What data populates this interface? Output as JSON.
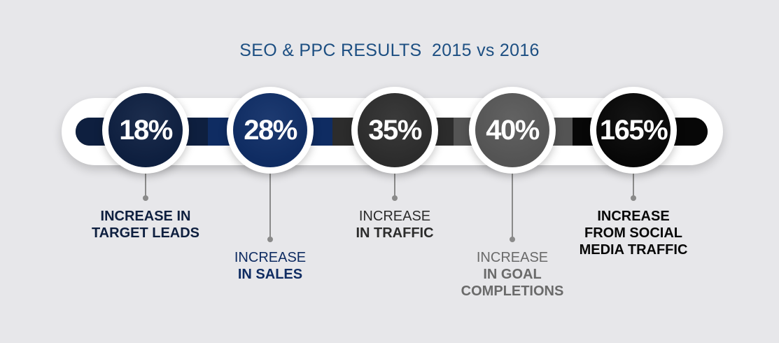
{
  "title": "SEO & PPC RESULTS  2015 vs 2016",
  "colors": {
    "background": "#e7e7ea",
    "title": "#1d4f82",
    "stage1": "#0e1f3f",
    "stage2": "#0f2c62",
    "stage3": "#2c2c2c",
    "stage4": "#545454",
    "stage5": "#070707"
  },
  "stats": [
    {
      "value": "18%",
      "label_line1": "INCREASE IN",
      "label_line2": "TARGET LEADS",
      "label_line3": ""
    },
    {
      "value": "28%",
      "label_line1": "INCREASE",
      "label_line2": "IN SALES",
      "label_line3": ""
    },
    {
      "value": "35%",
      "label_line1": "INCREASE",
      "label_line2": "IN TRAFFIC",
      "label_line3": ""
    },
    {
      "value": "40%",
      "label_line1": "INCREASE",
      "label_line2": "IN GOAL",
      "label_line3": "COMPLETIONS"
    },
    {
      "value": "165%",
      "label_line1": "INCREASE",
      "label_line2": "FROM SOCIAL",
      "label_line3": "MEDIA TRAFFIC"
    }
  ],
  "chart_data": {
    "type": "bar",
    "title": "SEO & PPC RESULTS  2015 vs 2016",
    "categories": [
      "INCREASE IN TARGET LEADS",
      "INCREASE IN SALES",
      "INCREASE IN TRAFFIC",
      "INCREASE IN GOAL COMPLETIONS",
      "INCREASE FROM SOCIAL MEDIA TRAFFIC"
    ],
    "values": [
      18,
      28,
      35,
      40,
      165
    ],
    "xlabel": "",
    "ylabel": ""
  }
}
